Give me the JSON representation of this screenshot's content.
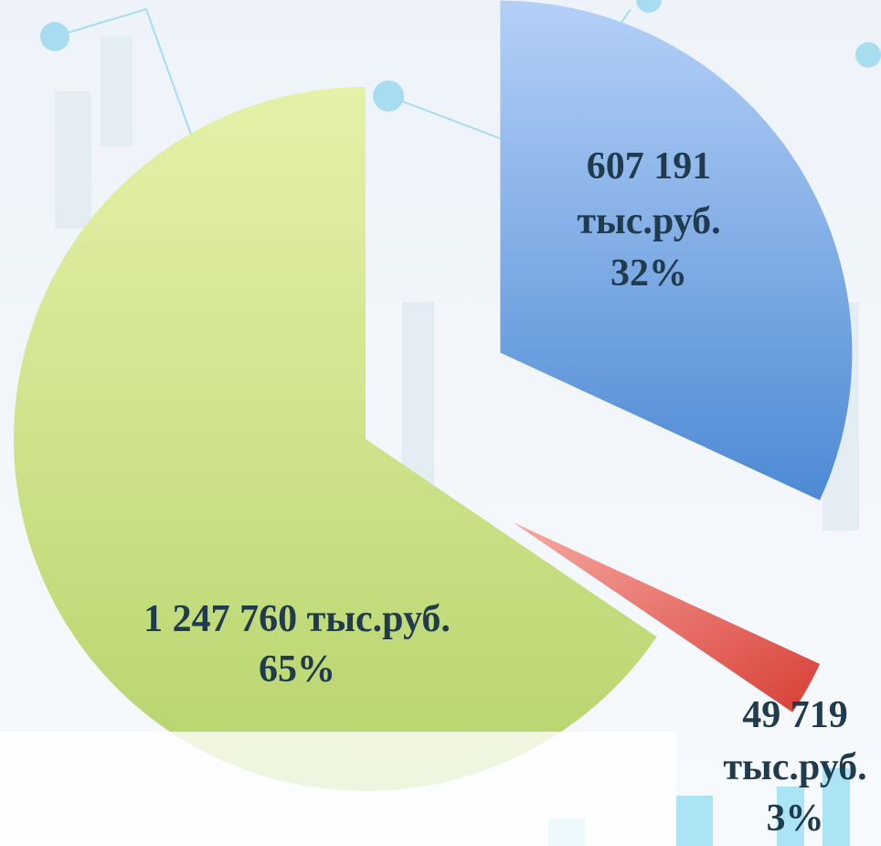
{
  "chart_data": {
    "type": "pie",
    "values": [
      607191,
      49719,
      1247760
    ],
    "value_labels": [
      "607 191",
      "49 719",
      "1 247 760"
    ],
    "unit": "тыс.руб.",
    "percents": [
      32,
      3,
      65
    ],
    "percent_labels": [
      "32%",
      "3%",
      "65%"
    ],
    "colors": [
      "#6fa3e6",
      "#e8625a",
      "#cde08a"
    ]
  }
}
